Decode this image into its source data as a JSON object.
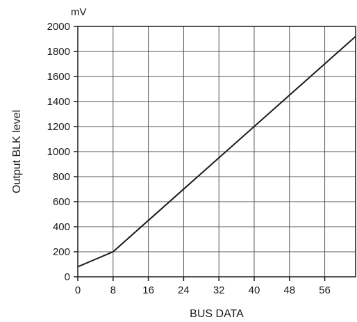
{
  "chart_data": {
    "type": "line",
    "title": "",
    "xlabel": "BUS DATA",
    "ylabel": "Output BLK level",
    "y_unit": "mV",
    "xlim": [
      0,
      63
    ],
    "ylim": [
      0,
      2000
    ],
    "x_ticks": [
      0,
      8,
      16,
      24,
      32,
      40,
      48,
      56
    ],
    "y_ticks": [
      0,
      200,
      400,
      600,
      800,
      1000,
      1200,
      1400,
      1600,
      1800,
      2000
    ],
    "grid": true,
    "legend": "none",
    "line_color": "#1a1a1a",
    "series": [
      {
        "x": [
          0,
          8,
          63
        ],
        "y": [
          80,
          200,
          1920
        ]
      }
    ]
  }
}
